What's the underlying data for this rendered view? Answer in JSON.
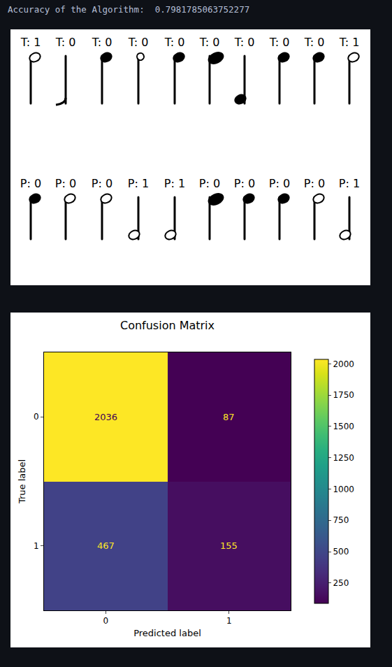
{
  "header": {
    "text": "Accuracy of the Algorithm:  0.7981785063752277"
  },
  "samples": {
    "true_row": [
      "T: 1",
      "T: 0",
      "T: 0",
      "T: 0",
      "T: 0",
      "T: 0",
      "T: 0",
      "T: 0",
      "T: 0",
      "T: 1"
    ],
    "predicted_row": [
      "P: 0",
      "P: 0",
      "P: 0",
      "P: 1",
      "P: 1",
      "P: 0",
      "P: 0",
      "P: 0",
      "P: 0",
      "P: 1"
    ]
  },
  "chart_data": {
    "type": "heatmap",
    "title": "Confusion Matrix",
    "x_label": "Predicted label",
    "y_label": "True label",
    "x": [
      "0",
      "1"
    ],
    "y": [
      "0",
      "1"
    ],
    "cells": [
      [
        2036,
        87
      ],
      [
        467,
        155
      ]
    ],
    "color": "Viridis",
    "colorbar": {
      "range": [
        87,
        2036
      ],
      "ticks": [
        250,
        500,
        750,
        1000,
        1250,
        1500,
        1750,
        2000
      ]
    },
    "data_labels": true
  }
}
